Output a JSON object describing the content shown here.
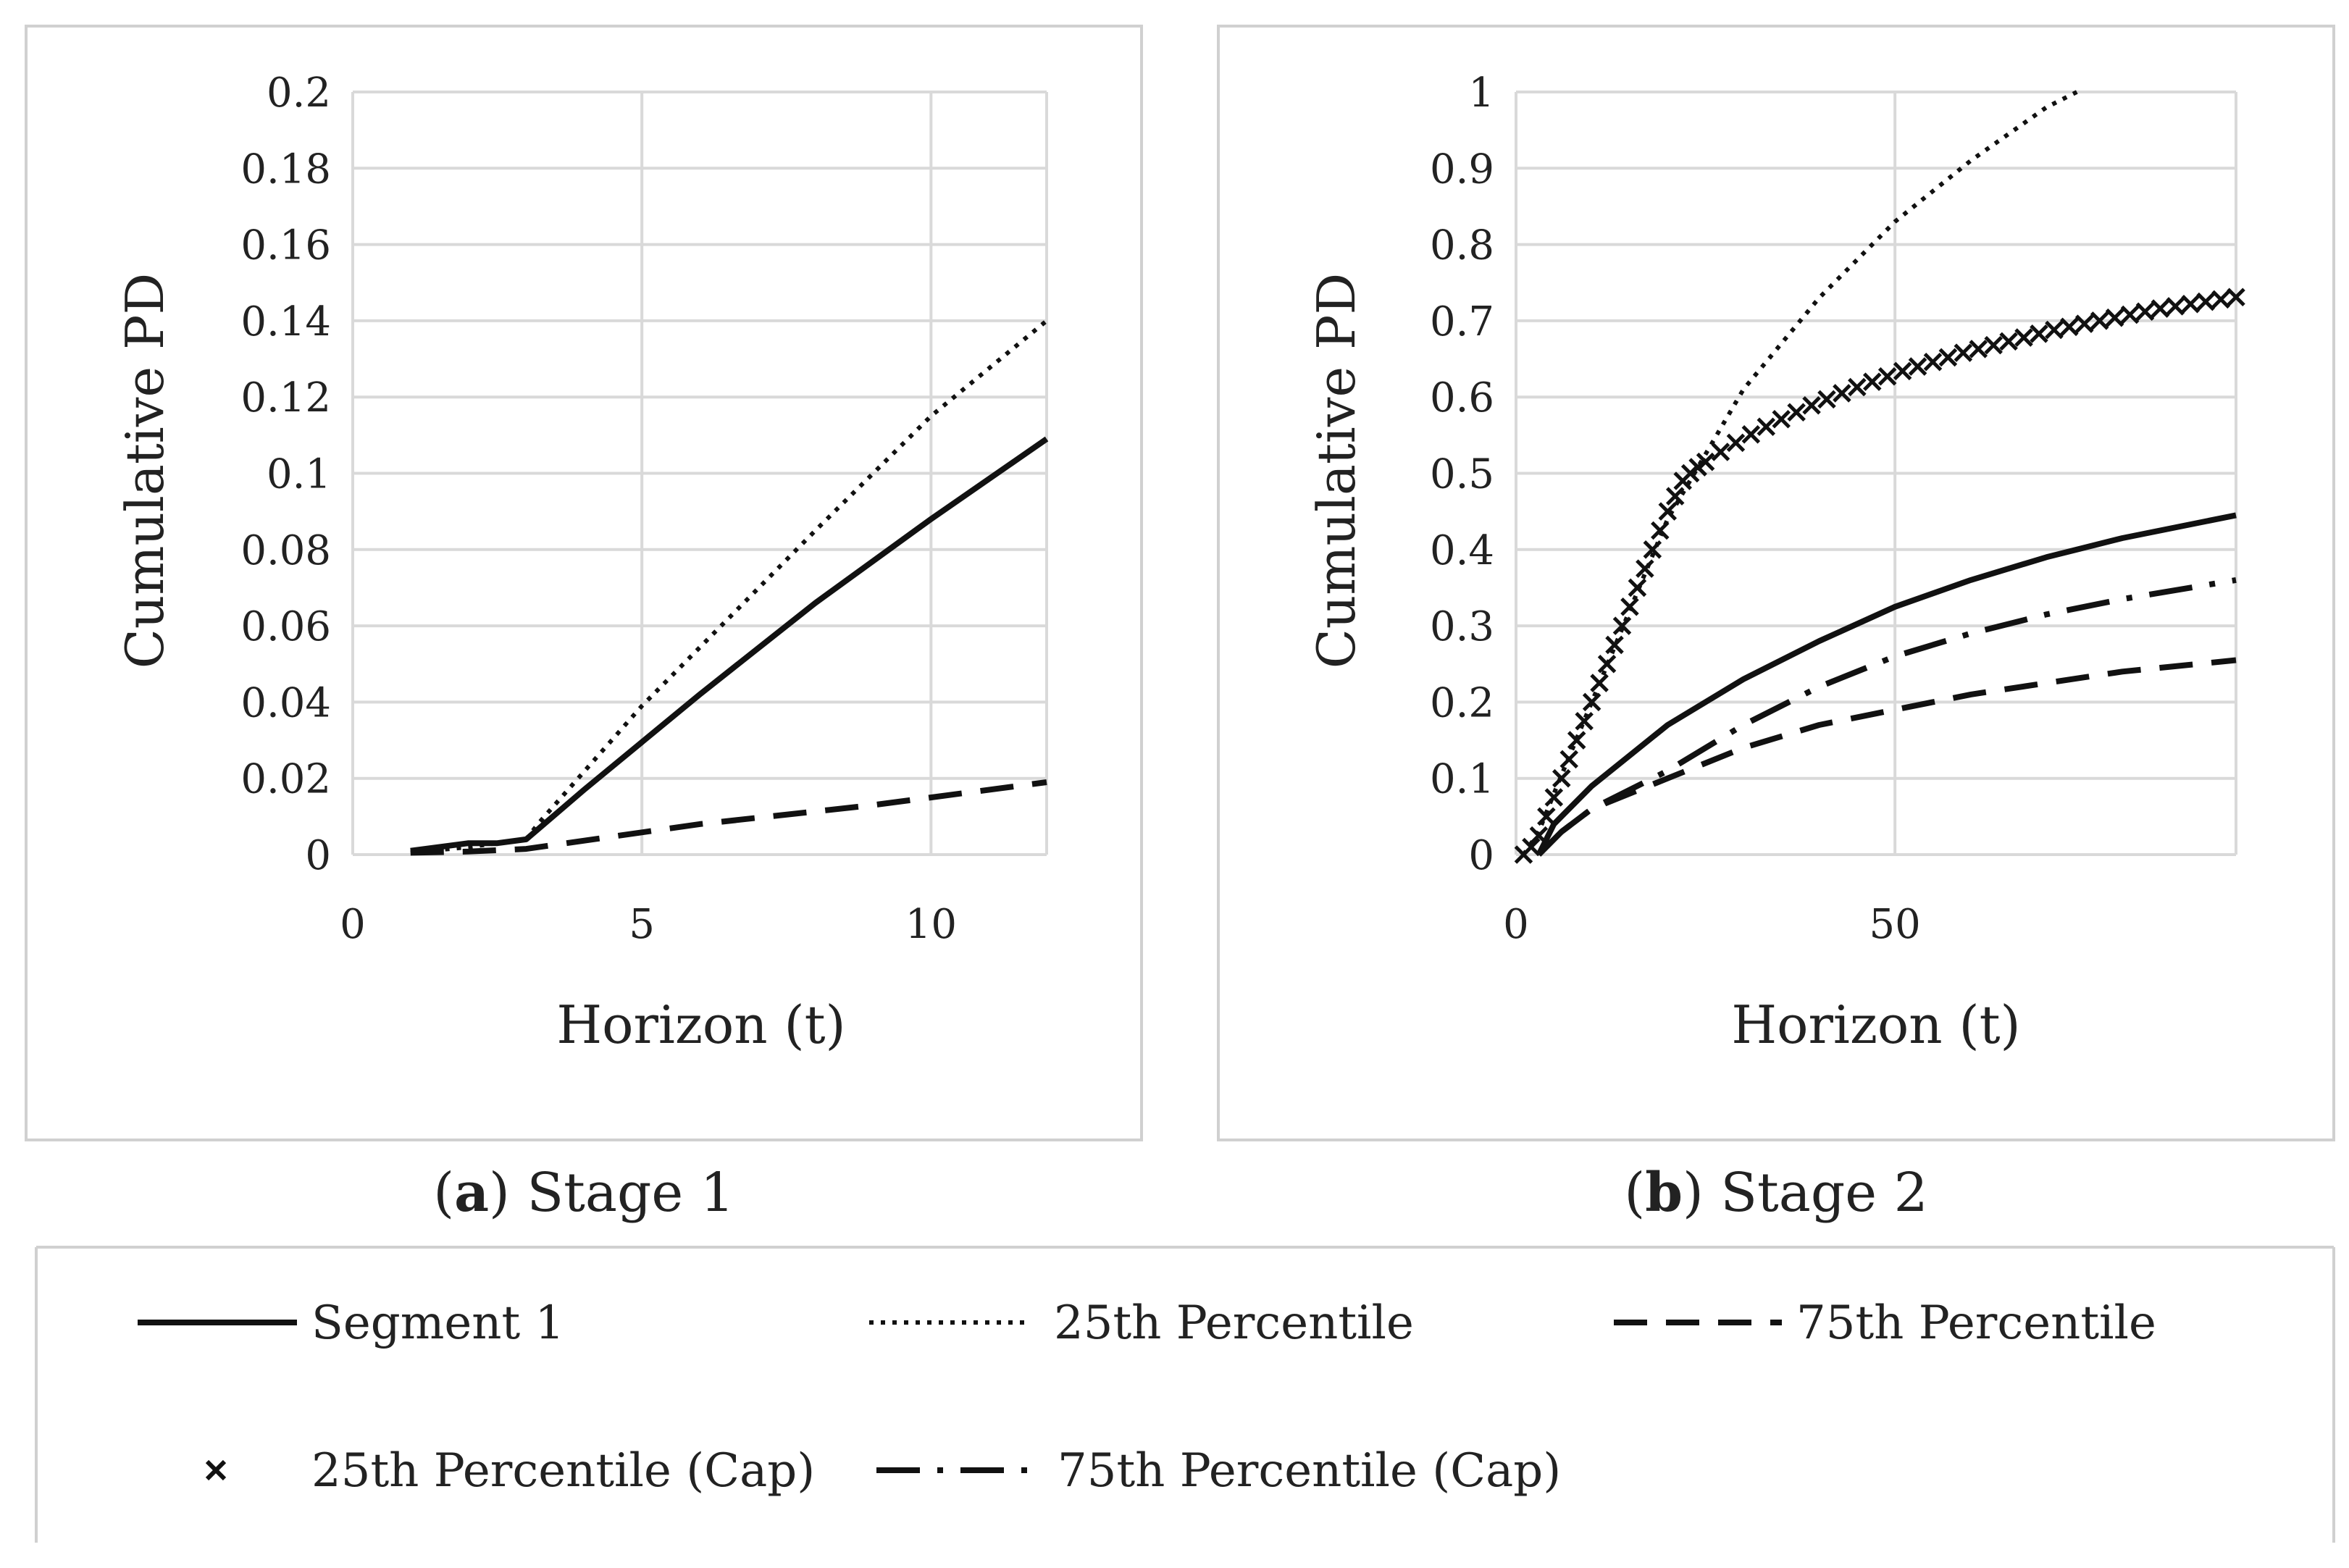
{
  "chart_data": [
    {
      "type": "line",
      "caption_letter": "a",
      "caption_text": "Stage 1",
      "xlabel": "Horizon (t)",
      "ylabel": "Cumulative PD",
      "xlim": [
        0,
        12
      ],
      "ylim": [
        0,
        0.2
      ],
      "xticks": [
        "0",
        "5",
        "10"
      ],
      "xtick_values": [
        0,
        5,
        10
      ],
      "yticks": [
        "0",
        "0.02",
        "0.04",
        "0.06",
        "0.08",
        "0.1",
        "0.12",
        "0.14",
        "0.16",
        "0.18",
        "0.2"
      ],
      "ytick_values": [
        0,
        0.02,
        0.04,
        0.06,
        0.08,
        0.1,
        0.12,
        0.14,
        0.16,
        0.18,
        0.2
      ],
      "grid": true,
      "series": [
        {
          "name": "Segment 1",
          "style": "solid",
          "x": [
            1,
            2,
            2.5,
            3,
            4,
            6,
            8,
            10,
            12
          ],
          "y": [
            0.001,
            0.003,
            0.003,
            0.004,
            0.017,
            0.042,
            0.066,
            0.088,
            0.109
          ]
        },
        {
          "name": "25th Percentile",
          "style": "dotted",
          "x": [
            1,
            2,
            3,
            3.2,
            5,
            8,
            10,
            12
          ],
          "y": [
            0.0005,
            0.002,
            0.004,
            0.008,
            0.039,
            0.085,
            0.115,
            0.14
          ]
        },
        {
          "name": "75th Percentile",
          "style": "dashed",
          "x": [
            1,
            2,
            3,
            6,
            9,
            12
          ],
          "y": [
            0.0005,
            0.0008,
            0.0015,
            0.008,
            0.013,
            0.019
          ]
        }
      ]
    },
    {
      "type": "line",
      "caption_letter": "b",
      "caption_text": "Stage 2",
      "xlabel": "Horizon (t)",
      "ylabel": "Cumulative PD",
      "xlim": [
        0,
        95
      ],
      "ylim": [
        0,
        1
      ],
      "xticks": [
        "0",
        "50"
      ],
      "xtick_values": [
        0,
        50
      ],
      "yticks": [
        "0",
        "0.1",
        "0.2",
        "0.3",
        "0.4",
        "0.5",
        "0.6",
        "0.7",
        "0.8",
        "0.9",
        "1"
      ],
      "ytick_values": [
        0,
        0.1,
        0.2,
        0.3,
        0.4,
        0.5,
        0.6,
        0.7,
        0.8,
        0.9,
        1
      ],
      "grid": true,
      "series": [
        {
          "name": "Segment 1",
          "style": "solid",
          "x": [
            3,
            5,
            10,
            20,
            30,
            40,
            50,
            60,
            70,
            80,
            95
          ],
          "y": [
            0.0,
            0.04,
            0.09,
            0.17,
            0.23,
            0.28,
            0.325,
            0.36,
            0.39,
            0.415,
            0.445
          ]
        },
        {
          "name": "25th Percentile",
          "style": "dotted",
          "x": [
            1,
            3,
            5,
            10,
            15,
            20,
            30,
            40,
            50,
            60,
            70,
            74
          ],
          "y": [
            0.0,
            0.03,
            0.08,
            0.2,
            0.32,
            0.44,
            0.61,
            0.73,
            0.83,
            0.91,
            0.98,
            1.0
          ]
        },
        {
          "name": "75th Percentile",
          "style": "dashed",
          "x": [
            6,
            10,
            20,
            30,
            40,
            50,
            60,
            70,
            80,
            95
          ],
          "y": [
            0.03,
            0.06,
            0.1,
            0.14,
            0.17,
            0.19,
            0.21,
            0.225,
            0.24,
            0.255
          ]
        },
        {
          "name": "25th Percentile (Cap)",
          "style": "markers-x",
          "x": [
            1,
            2,
            3,
            4,
            5,
            6,
            7,
            8,
            9,
            10,
            11,
            12,
            13,
            14,
            15,
            16,
            17,
            18,
            19,
            20,
            21,
            22,
            23,
            24,
            25,
            27,
            29,
            31,
            33,
            35,
            37,
            39,
            41,
            43,
            45,
            47,
            49,
            51,
            53,
            55,
            57,
            59,
            61,
            63,
            65,
            67,
            69,
            71,
            73,
            75,
            77,
            79,
            81,
            83,
            85,
            87,
            89,
            91,
            93,
            95
          ],
          "y": [
            0.0,
            0.01,
            0.025,
            0.05,
            0.075,
            0.1,
            0.125,
            0.15,
            0.175,
            0.2,
            0.225,
            0.25,
            0.275,
            0.3,
            0.325,
            0.35,
            0.375,
            0.4,
            0.425,
            0.45,
            0.47,
            0.49,
            0.5,
            0.508,
            0.515,
            0.528,
            0.54,
            0.551,
            0.561,
            0.571,
            0.58,
            0.589,
            0.597,
            0.605,
            0.613,
            0.62,
            0.627,
            0.634,
            0.64,
            0.646,
            0.652,
            0.658,
            0.663,
            0.668,
            0.673,
            0.678,
            0.683,
            0.688,
            0.692,
            0.696,
            0.7,
            0.704,
            0.708,
            0.712,
            0.716,
            0.719,
            0.722,
            0.725,
            0.728,
            0.731
          ]
        },
        {
          "name": "75th Percentile (Cap)",
          "style": "dashdot",
          "x": [
            3,
            6,
            10,
            20,
            30,
            40,
            50,
            60,
            70,
            80,
            95
          ],
          "y": [
            0.0,
            0.03,
            0.06,
            0.11,
            0.17,
            0.22,
            0.26,
            0.29,
            0.315,
            0.335,
            0.36
          ]
        }
      ]
    }
  ],
  "legend": [
    {
      "label": "Segment 1",
      "style": "solid"
    },
    {
      "label": "25th Percentile",
      "style": "dotted"
    },
    {
      "label": "75th Percentile",
      "style": "dashed"
    },
    {
      "label": "25th Percentile (Cap)",
      "style": "markers-x"
    },
    {
      "label": "75th Percentile (Cap)",
      "style": "dashdot"
    }
  ]
}
